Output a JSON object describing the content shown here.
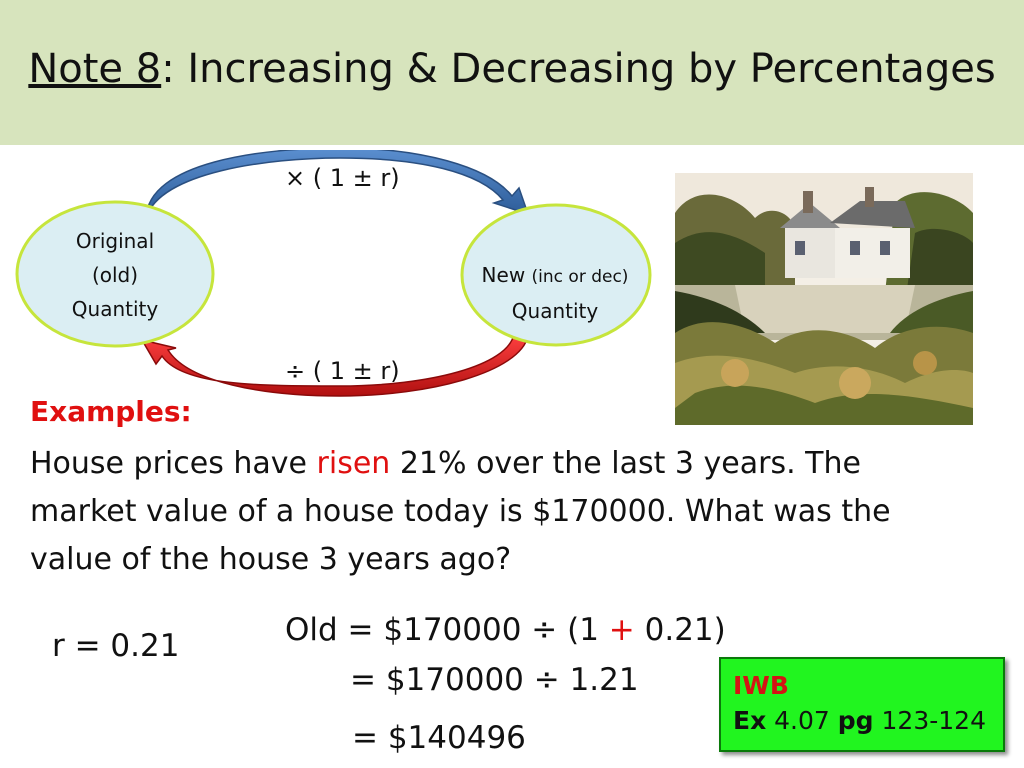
{
  "title": {
    "prefix": "Note 8",
    "rest": ": Increasing & Decreasing by Percentages"
  },
  "diagram": {
    "original": [
      "Original",
      "(old)",
      "Quantity"
    ],
    "new_line1_main": "New",
    "new_line1_small": "(inc or dec)",
    "new_line2": "Quantity",
    "top_arrow_label": "× ( 1 ± r)",
    "bottom_arrow_label": "÷ ( 1 ± r)"
  },
  "examples_heading": "Examples:",
  "problem": {
    "before_risen": "House prices have ",
    "risen": "risen",
    "after_risen": " 21% over the last 3 years.  The market value of a house today is $170000.  What was the value of the house 3 years ago?"
  },
  "work": {
    "r_value": "r = 0.21",
    "line1_before": "Old = $170000 ÷  (1 ",
    "line1_plus": "+",
    "line1_after": " 0.21)",
    "line2": "= $170000 ÷ 1.21",
    "line3": "= $140496"
  },
  "iwb": {
    "label": "IWB",
    "ex_label": "Ex",
    "ex_value": "4.07",
    "pg_label": "pg",
    "pg_value": "123-124"
  },
  "colors": {
    "title_band": "#d7e4bd",
    "accent_red": "#e01010",
    "oval_fill": "#dbeef3",
    "oval_border": "#c6e53c",
    "top_arrow": "#3a6aa8",
    "bottom_arrow": "#d01818",
    "iwb_box": "#21f51f"
  }
}
